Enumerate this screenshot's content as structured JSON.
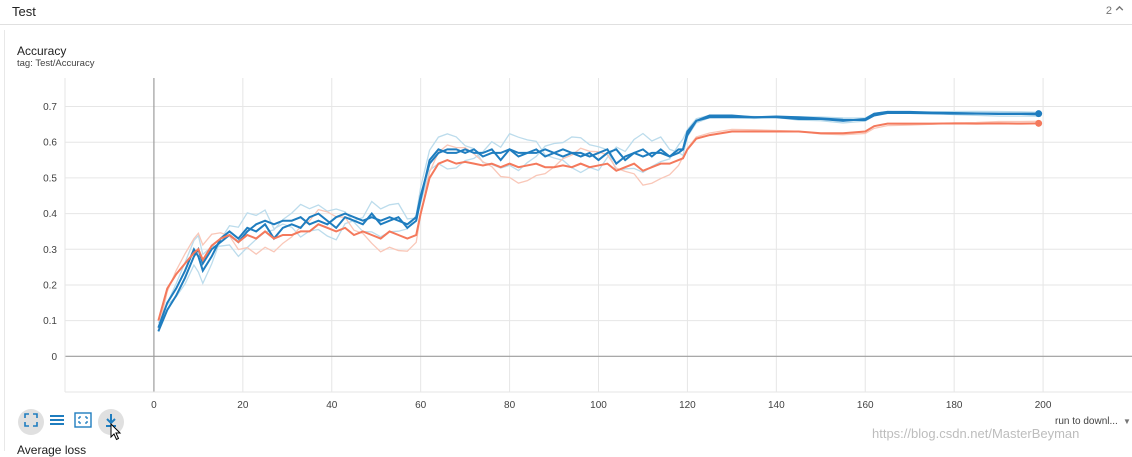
{
  "section": {
    "title": "Test",
    "count": "2"
  },
  "card": {
    "title": "Accuracy",
    "tag": "tag: Test/Accuracy"
  },
  "toolbar": {
    "fit_icon": "fullscreen-icon",
    "lines_icon": "toggle-lines-icon",
    "domain_icon": "fit-domain-icon",
    "download_icon": "download-icon"
  },
  "run_select": {
    "value": "run to downl..."
  },
  "watermark": "https://blog.csdn.net/MasterBeyman",
  "next_card": {
    "title": "Average loss"
  },
  "colors": {
    "blue": "#1f7dbf",
    "orange": "#f4795c",
    "blue_faint": "#bcdcec",
    "orange_faint": "#f9c7b8"
  },
  "chart_data": {
    "type": "line",
    "title": "Accuracy",
    "xlim": [
      -20,
      220
    ],
    "ylim": [
      -0.1,
      0.78
    ],
    "xticks": [
      0,
      20,
      40,
      60,
      80,
      100,
      120,
      140,
      160,
      180,
      200
    ],
    "yticks": [
      0,
      0.1,
      0.2,
      0.3,
      0.4,
      0.5,
      0.6,
      0.7
    ],
    "xtick_labels": [
      "0",
      "20",
      "40",
      "60",
      "80",
      "100",
      "120",
      "140",
      "160",
      "180",
      "200"
    ],
    "ytick_labels": [
      "0",
      "0.1",
      "0.2",
      "0.3",
      "0.4",
      "0.5",
      "0.6",
      "0.7"
    ],
    "grid": true,
    "series": [
      {
        "color": "#1f7dbf",
        "x": [
          1,
          3,
          5,
          7,
          9,
          10,
          11,
          13,
          15,
          17,
          19,
          21,
          23,
          25,
          27,
          29,
          31,
          33,
          35,
          37,
          39,
          41,
          43,
          45,
          47,
          49,
          51,
          53,
          55,
          57,
          59,
          60,
          62,
          64,
          66,
          68,
          70,
          72,
          74,
          76,
          78,
          80,
          82,
          84,
          86,
          88,
          90,
          92,
          94,
          96,
          98,
          100,
          102,
          104,
          106,
          108,
          110,
          112,
          114,
          116,
          118,
          119,
          120,
          122,
          125,
          130,
          135,
          140,
          145,
          150,
          155,
          160,
          162,
          165,
          170,
          175,
          180,
          185,
          190,
          195,
          199
        ],
        "y": [
          0.07,
          0.13,
          0.17,
          0.22,
          0.28,
          0.3,
          0.26,
          0.3,
          0.32,
          0.34,
          0.32,
          0.35,
          0.37,
          0.38,
          0.37,
          0.38,
          0.38,
          0.39,
          0.37,
          0.38,
          0.37,
          0.39,
          0.4,
          0.39,
          0.38,
          0.39,
          0.38,
          0.39,
          0.38,
          0.37,
          0.39,
          0.45,
          0.54,
          0.57,
          0.58,
          0.58,
          0.57,
          0.58,
          0.56,
          0.57,
          0.57,
          0.58,
          0.56,
          0.57,
          0.57,
          0.58,
          0.57,
          0.56,
          0.57,
          0.57,
          0.56,
          0.57,
          0.58,
          0.54,
          0.56,
          0.57,
          0.56,
          0.57,
          0.57,
          0.56,
          0.58,
          0.58,
          0.63,
          0.66,
          0.67,
          0.67,
          0.67,
          0.67,
          0.665,
          0.665,
          0.66,
          0.665,
          0.68,
          0.685,
          0.685,
          0.683,
          0.682,
          0.681,
          0.68,
          0.68,
          0.68
        ]
      },
      {
        "color": "#1f7dbf",
        "x": [
          1,
          3,
          5,
          7,
          9,
          10,
          11,
          13,
          15,
          17,
          19,
          21,
          23,
          25,
          27,
          29,
          31,
          33,
          35,
          37,
          39,
          41,
          43,
          45,
          47,
          49,
          51,
          53,
          55,
          57,
          59,
          60,
          62,
          64,
          66,
          68,
          70,
          72,
          74,
          76,
          78,
          80,
          82,
          84,
          86,
          88,
          90,
          92,
          94,
          96,
          98,
          100,
          102,
          104,
          106,
          108,
          110,
          112,
          114,
          116,
          118,
          119,
          120,
          122,
          125,
          130,
          135,
          140,
          145,
          150,
          155,
          160,
          162,
          165,
          170,
          175,
          180,
          185,
          190,
          195,
          199
        ],
        "y": [
          0.08,
          0.15,
          0.19,
          0.24,
          0.3,
          0.28,
          0.24,
          0.28,
          0.33,
          0.35,
          0.33,
          0.36,
          0.35,
          0.37,
          0.33,
          0.36,
          0.37,
          0.36,
          0.39,
          0.4,
          0.38,
          0.36,
          0.39,
          0.38,
          0.37,
          0.4,
          0.37,
          0.38,
          0.39,
          0.36,
          0.38,
          0.44,
          0.55,
          0.58,
          0.57,
          0.57,
          0.58,
          0.57,
          0.57,
          0.58,
          0.55,
          0.58,
          0.57,
          0.57,
          0.58,
          0.56,
          0.57,
          0.58,
          0.57,
          0.56,
          0.57,
          0.55,
          0.57,
          0.58,
          0.55,
          0.57,
          0.58,
          0.56,
          0.58,
          0.56,
          0.57,
          0.58,
          0.62,
          0.66,
          0.675,
          0.675,
          0.67,
          0.672,
          0.67,
          0.667,
          0.663,
          0.662,
          0.675,
          0.682,
          0.682,
          0.681,
          0.68,
          0.68,
          0.679,
          0.679,
          0.678
        ]
      },
      {
        "color": "#f4795c",
        "x": [
          1,
          3,
          5,
          7,
          9,
          10,
          11,
          13,
          15,
          17,
          19,
          21,
          23,
          25,
          27,
          29,
          31,
          33,
          35,
          37,
          39,
          41,
          43,
          45,
          47,
          49,
          51,
          53,
          55,
          57,
          59,
          60,
          62,
          64,
          66,
          68,
          70,
          72,
          74,
          76,
          78,
          80,
          82,
          84,
          86,
          88,
          90,
          92,
          94,
          96,
          98,
          100,
          102,
          104,
          106,
          108,
          110,
          112,
          114,
          116,
          118,
          119,
          120,
          122,
          125,
          130,
          135,
          140,
          145,
          150,
          155,
          160,
          162,
          165,
          170,
          175,
          180,
          185,
          190,
          195,
          199
        ],
        "y": [
          0.1,
          0.19,
          0.23,
          0.26,
          0.29,
          0.3,
          0.27,
          0.31,
          0.33,
          0.34,
          0.32,
          0.34,
          0.33,
          0.35,
          0.33,
          0.34,
          0.34,
          0.35,
          0.35,
          0.37,
          0.36,
          0.35,
          0.36,
          0.34,
          0.35,
          0.34,
          0.33,
          0.35,
          0.34,
          0.33,
          0.34,
          0.4,
          0.5,
          0.54,
          0.55,
          0.54,
          0.545,
          0.54,
          0.535,
          0.54,
          0.53,
          0.54,
          0.53,
          0.535,
          0.54,
          0.53,
          0.53,
          0.535,
          0.53,
          0.54,
          0.53,
          0.535,
          0.54,
          0.52,
          0.53,
          0.54,
          0.52,
          0.53,
          0.54,
          0.54,
          0.55,
          0.555,
          0.58,
          0.61,
          0.62,
          0.63,
          0.63,
          0.63,
          0.63,
          0.625,
          0.625,
          0.63,
          0.645,
          0.652,
          0.652,
          0.652,
          0.653,
          0.652,
          0.653,
          0.652,
          0.653
        ]
      }
    ]
  }
}
